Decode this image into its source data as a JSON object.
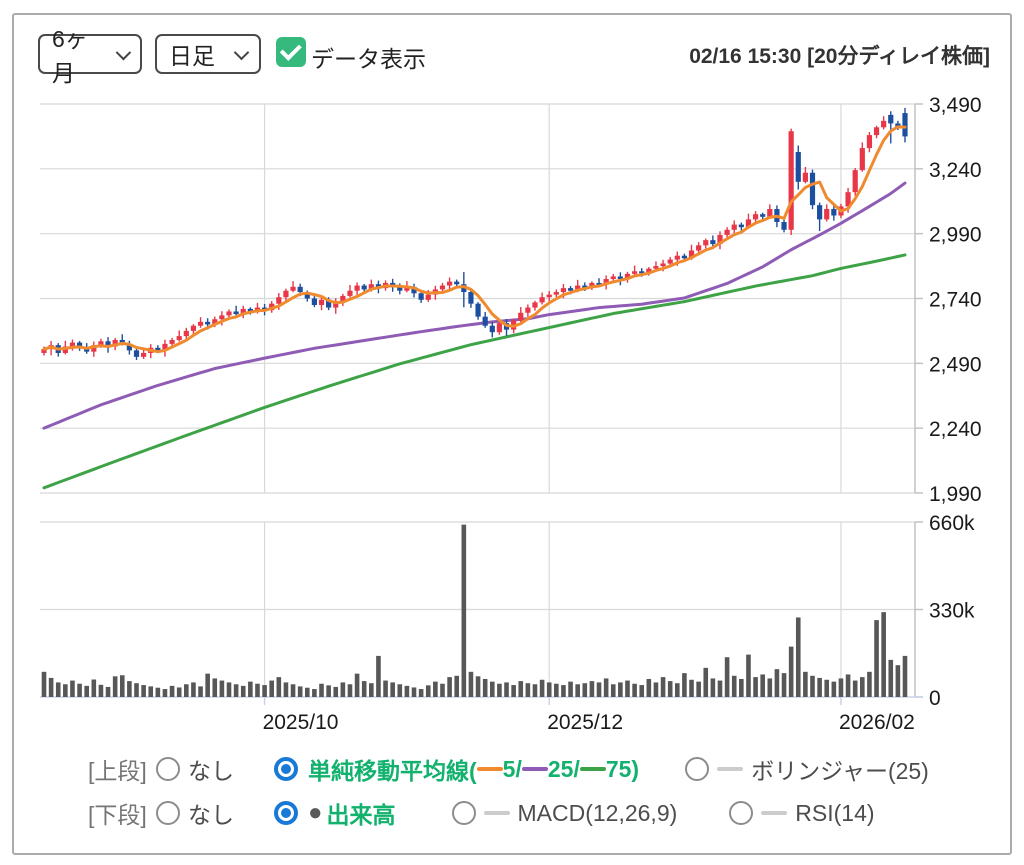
{
  "controls": {
    "period_select": "6ヶ月",
    "interval_select": "日足",
    "checkbox_label": "データ表示",
    "title": "02/16 15:30 [20分ディレイ株価]"
  },
  "legend": {
    "upper_label": "[上段]",
    "upper_none": "なし",
    "sma_prefix": "単純移動平均線(",
    "sma_5": " 5/",
    "sma_25": " 25/",
    "sma_75": " 75)",
    "bollinger": "ボリンジャー(25)",
    "lower_label": "[下段]",
    "lower_none": "なし",
    "volume_bullet": "●",
    "volume_label": "出来高",
    "macd": "MACD(12,26,9)",
    "rsi": "RSI(14)"
  },
  "chart_data": {
    "type": "candlestick",
    "panes": [
      "price",
      "volume"
    ],
    "price_axis": {
      "min": 1990,
      "max": 3490,
      "tick_step": 250,
      "tick_labels": [
        "3,490",
        "3,240",
        "2,990",
        "2,740",
        "2,490",
        "2,240",
        "1,990"
      ]
    },
    "volume_axis": {
      "max_k": 660,
      "tick_labels": [
        "660k",
        "330k",
        "0"
      ]
    },
    "x_ticks": [
      {
        "label": "2025/10",
        "index": 31
      },
      {
        "label": "2025/12",
        "index": 71
      },
      {
        "label": "2026/02",
        "index": 112
      }
    ],
    "closes": [
      2545,
      2560,
      2530,
      2555,
      2570,
      2550,
      2535,
      2560,
      2575,
      2555,
      2580,
      2565,
      2540,
      2515,
      2530,
      2550,
      2540,
      2565,
      2580,
      2595,
      2615,
      2635,
      2650,
      2640,
      2660,
      2675,
      2690,
      2680,
      2700,
      2690,
      2705,
      2695,
      2720,
      2745,
      2770,
      2785,
      2765,
      2740,
      2715,
      2735,
      2705,
      2725,
      2750,
      2770,
      2790,
      2775,
      2795,
      2780,
      2800,
      2790,
      2770,
      2785,
      2760,
      2735,
      2755,
      2775,
      2790,
      2805,
      2795,
      2765,
      2720,
      2670,
      2635,
      2610,
      2645,
      2620,
      2655,
      2685,
      2705,
      2725,
      2745,
      2755,
      2765,
      2780,
      2770,
      2790,
      2785,
      2800,
      2795,
      2815,
      2825,
      2815,
      2835,
      2845,
      2840,
      2855,
      2865,
      2875,
      2890,
      2905,
      2895,
      2925,
      2945,
      2965,
      2950,
      2985,
      3005,
      3025,
      3015,
      3045,
      3065,
      3055,
      3085,
      3035,
      3005,
      3385,
      3190,
      3225,
      3100,
      3045,
      3085,
      3060,
      3095,
      3150,
      3235,
      3320,
      3370,
      3400,
      3425,
      3415,
      3400,
      3365
    ],
    "volumes_k": [
      95,
      72,
      55,
      48,
      62,
      50,
      42,
      66,
      46,
      38,
      78,
      82,
      60,
      52,
      45,
      40,
      35,
      30,
      42,
      36,
      48,
      55,
      40,
      88,
      70,
      62,
      55,
      48,
      42,
      58,
      50,
      45,
      62,
      75,
      55,
      48,
      40,
      35,
      30,
      50,
      44,
      38,
      55,
      48,
      88,
      60,
      52,
      155,
      62,
      55,
      48,
      42,
      36,
      30,
      44,
      58,
      50,
      75,
      80,
      650,
      95,
      78,
      68,
      58,
      50,
      55,
      45,
      60,
      52,
      48,
      65,
      55,
      50,
      45,
      58,
      48,
      52,
      60,
      55,
      70,
      48,
      55,
      62,
      50,
      45,
      68,
      55,
      75,
      60,
      52,
      90,
      65,
      58,
      110,
      70,
      62,
      150,
      80,
      68,
      160,
      75,
      85,
      70,
      105,
      90,
      190,
      300,
      95,
      80,
      72,
      65,
      58,
      70,
      85,
      62,
      75,
      95,
      290,
      320,
      140,
      120,
      155
    ],
    "ohlc_overrides": {
      "59": [
        2795,
        2842,
        2706,
        2765
      ],
      "105": [
        3005,
        3395,
        2985,
        3385
      ],
      "106": [
        3305,
        3330,
        3160,
        3190
      ],
      "109": [
        3100,
        3110,
        3000,
        3045
      ],
      "119": [
        3448,
        3462,
        3338,
        3415
      ],
      "121": [
        3455,
        3475,
        3342,
        3365
      ]
    },
    "ma25_points": [
      [
        0,
        2240
      ],
      [
        8,
        2330
      ],
      [
        16,
        2405
      ],
      [
        24,
        2470
      ],
      [
        31,
        2510
      ],
      [
        38,
        2548
      ],
      [
        45,
        2578
      ],
      [
        52,
        2608
      ],
      [
        58,
        2632
      ],
      [
        63,
        2650
      ],
      [
        68,
        2662
      ],
      [
        71,
        2678
      ],
      [
        78,
        2705
      ],
      [
        84,
        2718
      ],
      [
        90,
        2742
      ],
      [
        96,
        2798
      ],
      [
        101,
        2862
      ],
      [
        105,
        2928
      ],
      [
        109,
        2985
      ],
      [
        112,
        3030
      ],
      [
        116,
        3095
      ],
      [
        119,
        3145
      ],
      [
        121,
        3185
      ]
    ],
    "ma75_points": [
      [
        0,
        2010
      ],
      [
        10,
        2112
      ],
      [
        20,
        2212
      ],
      [
        31,
        2320
      ],
      [
        40,
        2402
      ],
      [
        50,
        2488
      ],
      [
        60,
        2562
      ],
      [
        71,
        2628
      ],
      [
        80,
        2682
      ],
      [
        90,
        2728
      ],
      [
        100,
        2788
      ],
      [
        108,
        2828
      ],
      [
        112,
        2856
      ],
      [
        117,
        2884
      ],
      [
        121,
        2908
      ]
    ],
    "colors": {
      "up": "#e73748",
      "down": "#1d4f9f",
      "ma5": "#f08a2e",
      "ma25": "#8e5bb5",
      "ma75": "#3ea347",
      "volume_bar": "#575757",
      "grid": "#d8d8d8",
      "axis": "#c2c2c2",
      "x_axis": "#c9d3ea",
      "tick_text": "#1a1a1a"
    },
    "ui_colors": {
      "checkbox_green": "#35b97d",
      "legend_green": "#12b26e",
      "radio_blue": "#187ad6",
      "inactive_dash": "#cccccc",
      "volume_bullet": "#595959"
    }
  }
}
